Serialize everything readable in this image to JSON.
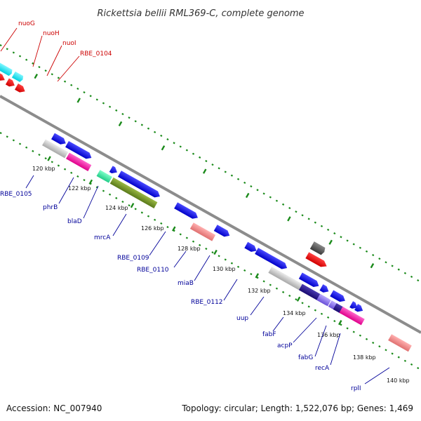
{
  "header": {
    "title": "Rickettsia bellii RML369-C, complete genome"
  },
  "footer": {
    "accession": "Accession: NC_007940",
    "summary": "Topology: circular; Length: 1,522,076 bp; Genes: 1,469"
  },
  "colors": {
    "label_red": "#cc0000",
    "label_blue": "#000099",
    "backbone": "#8c8c8c",
    "dots": "#1a8a1a"
  },
  "ticks": [
    {
      "label": "120 kbp"
    },
    {
      "label": "122 kbp"
    },
    {
      "label": "124 kbp"
    },
    {
      "label": "126 kbp"
    },
    {
      "label": "128 kbp"
    },
    {
      "label": "130 kbp"
    },
    {
      "label": "132 kbp"
    },
    {
      "label": "134 kbp"
    },
    {
      "label": "136 kbp"
    },
    {
      "label": "138 kbp"
    },
    {
      "label": "140 kbp"
    }
  ],
  "genes_outer": [
    {
      "name": "nuoG"
    },
    {
      "name": "nuoH"
    },
    {
      "name": "nuoI"
    },
    {
      "name": "RBE_0104"
    }
  ],
  "genes_inner": [
    {
      "name": "RBE_0105"
    },
    {
      "name": "phrB"
    },
    {
      "name": "blaD"
    },
    {
      "name": "mrcA"
    },
    {
      "name": "RBE_0109"
    },
    {
      "name": "RBE_0110"
    },
    {
      "name": "miaB"
    },
    {
      "name": "RBE_0112"
    },
    {
      "name": "uup"
    },
    {
      "name": "fabF"
    },
    {
      "name": "acpP"
    },
    {
      "name": "fabG"
    },
    {
      "name": "recA"
    },
    {
      "name": "rplI"
    }
  ]
}
